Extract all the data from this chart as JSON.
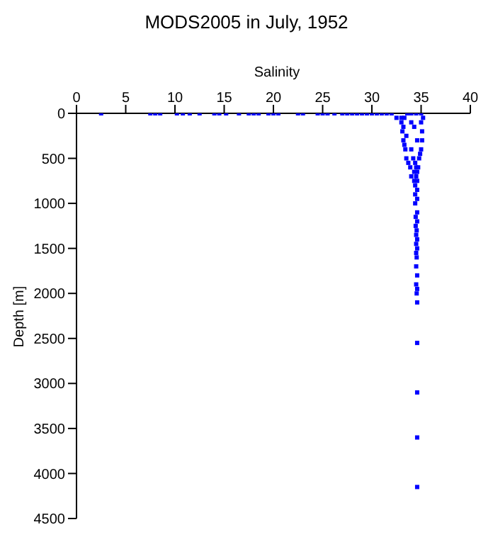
{
  "chart_data": {
    "type": "scatter",
    "title": "MODS2005 in July, 1952",
    "xlabel": "Salinity",
    "ylabel": "Depth [m]",
    "xlim": [
      0,
      40
    ],
    "xticks": [
      0,
      5,
      10,
      15,
      20,
      25,
      30,
      35,
      40
    ],
    "ylim": [
      4500,
      0
    ],
    "yticks": [
      0,
      500,
      1000,
      1500,
      2000,
      2500,
      3000,
      3500,
      4000,
      4500
    ],
    "grid": false,
    "marker": "square",
    "series": [
      {
        "color": "#0000ff",
        "x": [
          2.5,
          7.5,
          8,
          8.5,
          10.2,
          10.8,
          11.5,
          12.5,
          14,
          14.5,
          15.2,
          16.5,
          17.5,
          18,
          18.5,
          19.5,
          20,
          20.5,
          22.5,
          23,
          24.5,
          25,
          25.5,
          26.2,
          27,
          27.5,
          28,
          28.5,
          29,
          29.5,
          30,
          30.5,
          31,
          31.5,
          32,
          32.5,
          33,
          33.3,
          33.6,
          34,
          34.5,
          35,
          35.2,
          33,
          33.2,
          34,
          35,
          33.1,
          33.5,
          34.3,
          35.1,
          33.2,
          34.6,
          35.1,
          33.3,
          34,
          35,
          33.4,
          34.2,
          34.9,
          33.5,
          34.4,
          34.8,
          33.7,
          34.5,
          34.7,
          33.9,
          34.3,
          34.6,
          34,
          34.5,
          34.3,
          34.6,
          34.4,
          34.6,
          34.4,
          34.6,
          34.4,
          34.6,
          34.45,
          34.6,
          34.45,
          34.55,
          34.5,
          34.6,
          34.5,
          34.6,
          34.5,
          34.55,
          34.5,
          34.6,
          34.5,
          34.6,
          34.55,
          34.6,
          34.6,
          34.6,
          34.6,
          34.6
        ],
        "values": [
          0,
          0,
          0,
          0,
          0,
          0,
          0,
          0,
          0,
          0,
          0,
          0,
          0,
          0,
          0,
          0,
          0,
          0,
          0,
          0,
          0,
          0,
          0,
          0,
          0,
          0,
          0,
          0,
          0,
          0,
          0,
          0,
          0,
          0,
          0,
          50,
          50,
          50,
          0,
          0,
          0,
          0,
          50,
          100,
          150,
          100,
          100,
          200,
          250,
          150,
          200,
          300,
          300,
          300,
          350,
          400,
          400,
          400,
          500,
          450,
          500,
          550,
          500,
          550,
          600,
          600,
          600,
          650,
          650,
          700,
          700,
          750,
          750,
          800,
          850,
          900,
          950,
          1000,
          1100,
          1150,
          1200,
          1250,
          1300,
          1350,
          1400,
          1450,
          1500,
          1550,
          1600,
          1700,
          1800,
          1900,
          1950,
          2000,
          2100,
          2550,
          3100,
          3600,
          4150
        ]
      }
    ]
  }
}
